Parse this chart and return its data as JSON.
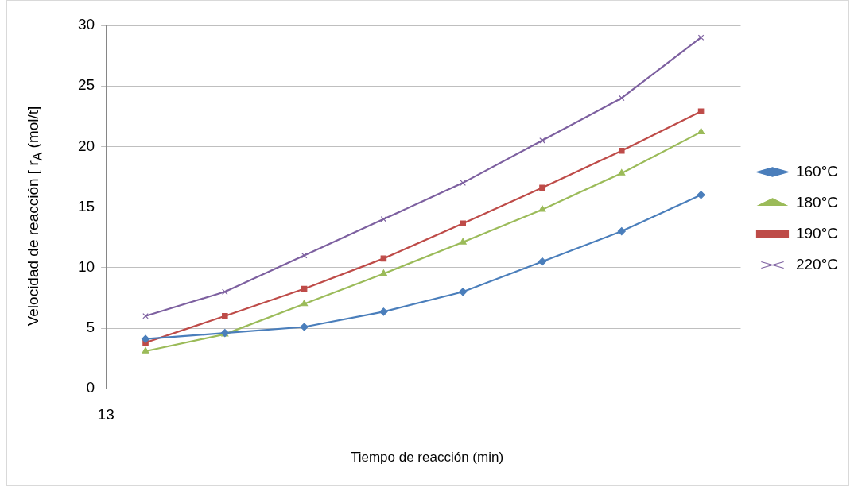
{
  "chart_data": {
    "type": "line",
    "xlabel": "Tiempo de reacción (min)",
    "ylabel": "Velocidad de reacción [ r$_{A}$ (mol/t]",
    "annotations": [
      "13"
    ],
    "categories": [
      null,
      null,
      null,
      null,
      null,
      null,
      null,
      null
    ],
    "ylim": [
      0,
      30
    ],
    "yticks": [
      0,
      5,
      10,
      15,
      20,
      25,
      30
    ],
    "grid": "y",
    "legend": "right",
    "line_style": "solid",
    "series": [
      {
        "name": "160°C",
        "color": "#4a7ebb",
        "marker": "diamond",
        "values": [
          4.1,
          4.6,
          5.1,
          6.35,
          8.0,
          10.5,
          13.0,
          16.0
        ]
      },
      {
        "name": "180°C",
        "color": "#9bbb59",
        "marker": "triangle",
        "values": [
          3.1,
          4.5,
          7.0,
          9.5,
          12.1,
          14.8,
          17.8,
          21.2
        ]
      },
      {
        "name": "190°C",
        "color": "#be4b48",
        "marker": "square",
        "values": [
          3.8,
          6.0,
          8.25,
          10.75,
          13.65,
          16.6,
          19.65,
          22.9
        ]
      },
      {
        "name": "220°C",
        "color": "#7d60a0",
        "marker": "cross",
        "values": [
          6.0,
          8.0,
          11.0,
          14.0,
          17.0,
          20.5,
          24.0,
          29.0
        ]
      }
    ]
  }
}
